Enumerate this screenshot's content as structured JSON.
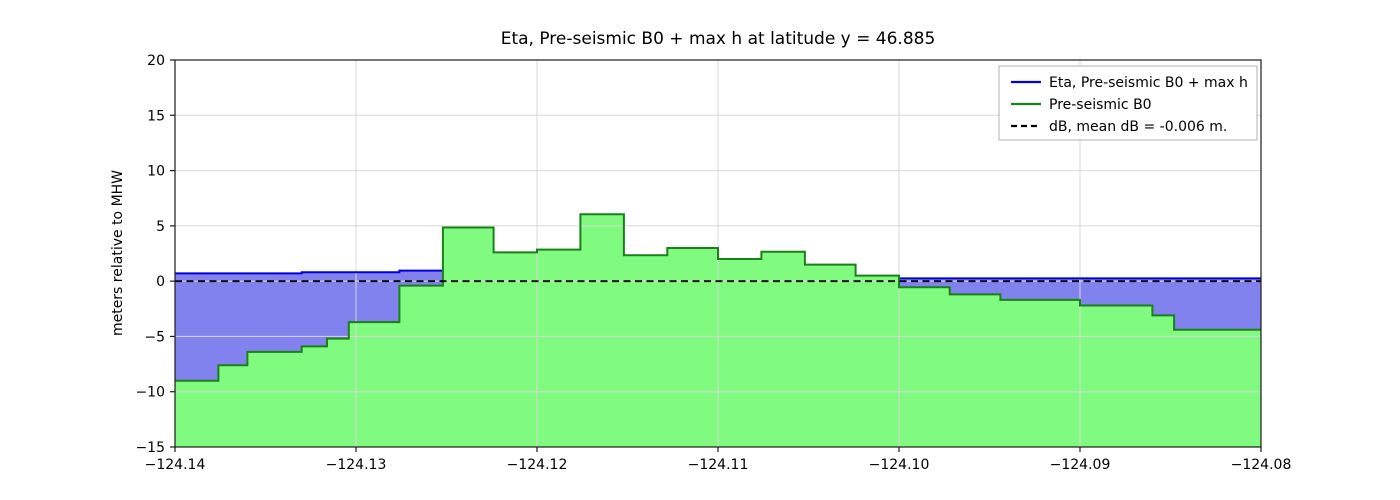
{
  "chart_data": {
    "type": "area",
    "title": "Eta, Pre-seismic B0 + max h at latitude y = 46.885",
    "ylabel": "meters relative to MHW",
    "xlabel": "",
    "xlim": [
      -124.14,
      -124.08
    ],
    "ylim": [
      -15,
      20
    ],
    "grid": true,
    "xticks": [
      {
        "v": -124.14,
        "label": "−124.14"
      },
      {
        "v": -124.13,
        "label": "−124.13"
      },
      {
        "v": -124.12,
        "label": "−124.12"
      },
      {
        "v": -124.11,
        "label": "−124.11"
      },
      {
        "v": -124.1,
        "label": "−124.10"
      },
      {
        "v": -124.09,
        "label": "−124.09"
      },
      {
        "v": -124.08,
        "label": "−124.08"
      }
    ],
    "yticks": [
      {
        "v": 20,
        "label": "20"
      },
      {
        "v": 15,
        "label": "15"
      },
      {
        "v": 10,
        "label": "10"
      },
      {
        "v": 5,
        "label": "5"
      },
      {
        "v": 0,
        "label": "0"
      },
      {
        "v": -5,
        "label": "−5"
      },
      {
        "v": -10,
        "label": "−10"
      },
      {
        "v": -15,
        "label": "−15"
      }
    ],
    "legend": {
      "position": "upper right",
      "entries": [
        {
          "label": "Eta, Pre-seismic B0 + max h",
          "color": "#0000dd",
          "style": "solid"
        },
        {
          "label": "Pre-seismic B0",
          "color": "#1a801a",
          "style": "solid"
        },
        {
          "label": "dB, mean dB = -0.006 m.",
          "color": "#000000",
          "style": "dashed"
        }
      ]
    },
    "series": {
      "b0": {
        "name": "Pre-seismic B0",
        "edges": [
          -124.14,
          -124.1376,
          -124.136,
          -124.133,
          -124.1316,
          -124.1304,
          -124.1276,
          -124.1252,
          -124.1224,
          -124.12,
          -124.1176,
          -124.1152,
          -124.1128,
          -124.11,
          -124.1076,
          -124.1052,
          -124.1024,
          -124.1,
          -124.0972,
          -124.0944,
          -124.09,
          -124.086,
          -124.0848,
          -124.08
        ],
        "values": [
          -9.0,
          -7.6,
          -6.4,
          -5.9,
          -5.2,
          -3.7,
          -0.4,
          4.85,
          2.6,
          2.85,
          6.05,
          2.35,
          3.0,
          2.0,
          2.65,
          1.5,
          0.5,
          -0.55,
          -1.2,
          -1.7,
          -2.2,
          -3.1,
          -4.4
        ]
      },
      "eta": {
        "name": "Eta, Pre-seismic B0 + max h",
        "wet_regions": [
          {
            "edges": [
              -124.14,
              -124.133,
              -124.1276,
              -124.1252
            ],
            "values": [
              0.7,
              0.8,
              0.95
            ]
          },
          {
            "edges": [
              -124.1,
              -124.08
            ],
            "values": [
              0.25
            ]
          }
        ]
      },
      "db": {
        "name": "dB",
        "mean": -0.006
      }
    },
    "colors": {
      "eta_fill": "#8282ef",
      "eta_line": "#0000dd",
      "b0_fill": "#80fb80",
      "b0_line": "#1a801a",
      "db_line": "#000000",
      "grid": "#d8d8d8",
      "frame": "#1a1a1a",
      "background": "#ffffff"
    }
  }
}
